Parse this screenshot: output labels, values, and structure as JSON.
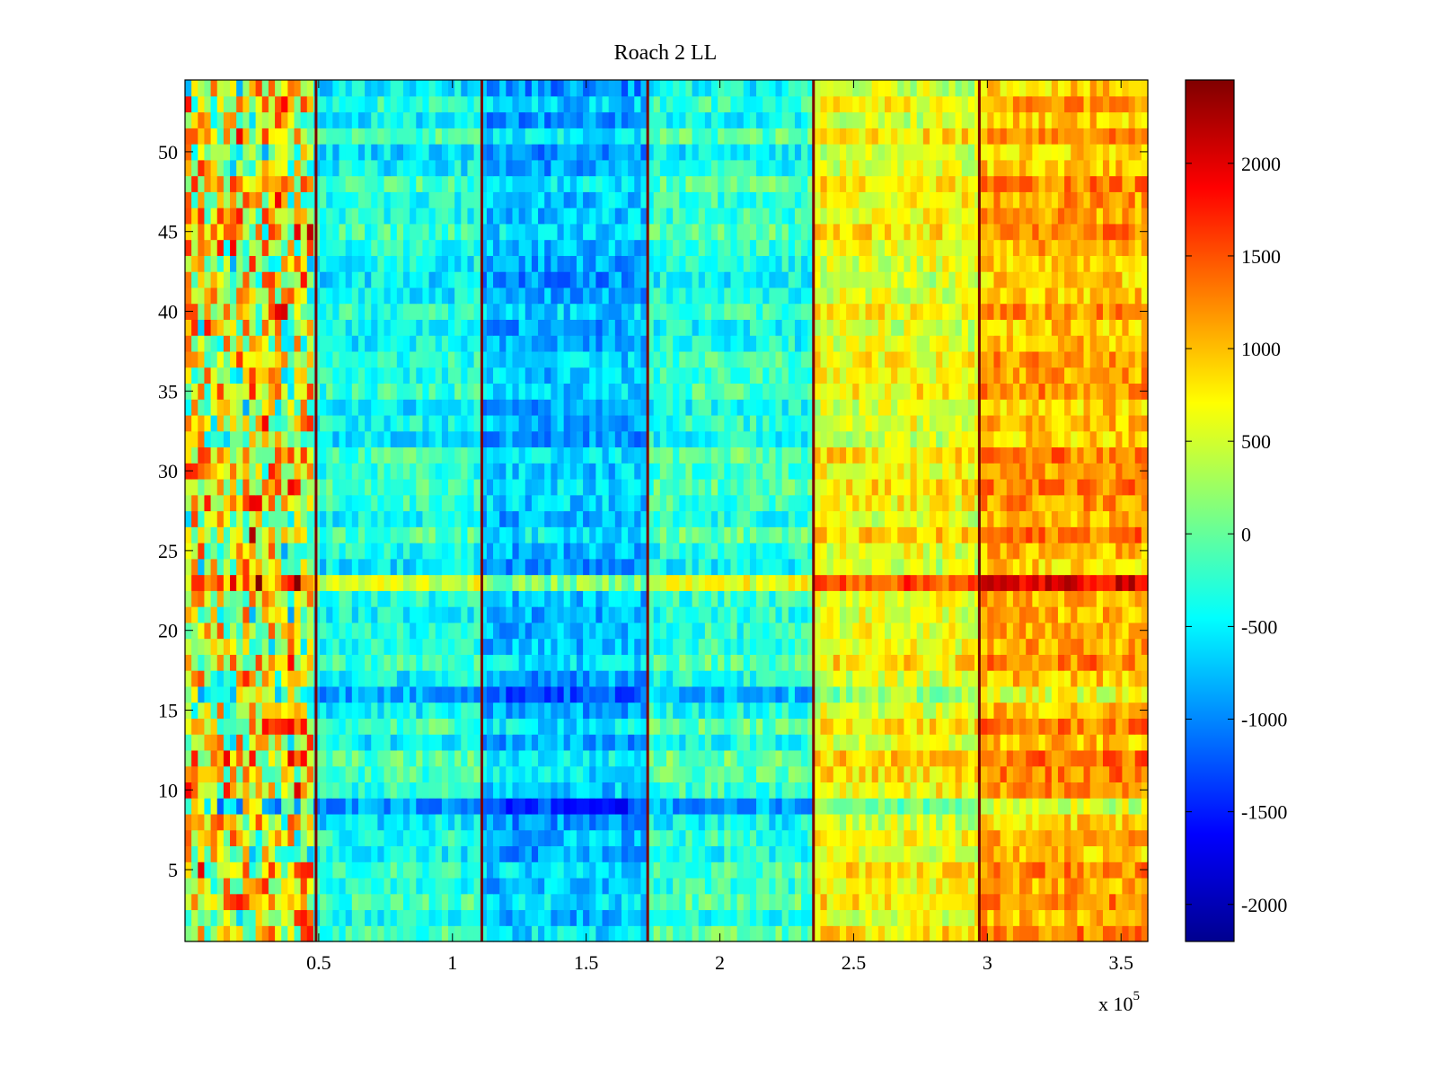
{
  "chart_data": {
    "type": "heatmap",
    "title": "Roach 2 LL",
    "xlabel": "",
    "ylabel": "",
    "x_multiplier_label": "x 10",
    "x_multiplier_exponent": "5",
    "xlim": [
      0,
      3.6
    ],
    "ylim": [
      0.5,
      54.5
    ],
    "rows": 54,
    "x_ticks": [
      0.5,
      1,
      1.5,
      2,
      2.5,
      3,
      3.5
    ],
    "x_tick_labels": [
      "0.5",
      "1",
      "1.5",
      "2",
      "2.5",
      "3",
      "3.5"
    ],
    "y_ticks": [
      5,
      10,
      15,
      20,
      25,
      30,
      35,
      40,
      45,
      50
    ],
    "y_tick_labels": [
      "5",
      "10",
      "15",
      "20",
      "25",
      "30",
      "35",
      "40",
      "45",
      "50"
    ],
    "colorbar": {
      "colormap": "jet",
      "clim": [
        -2200,
        2450
      ],
      "ticks": [
        -2000,
        -1500,
        -1000,
        -500,
        0,
        500,
        1000,
        1500,
        2000
      ],
      "tick_labels": [
        "-2000",
        "-1500",
        "-1000",
        "-500",
        "0",
        "500",
        "1000",
        "1500",
        "2000"
      ]
    },
    "segment_boundaries_x": [
      0.49,
      1.11,
      1.73,
      2.35,
      2.97
    ],
    "segments": [
      {
        "x_range": [
          0,
          0.49
        ],
        "mean_value": 600
      },
      {
        "x_range": [
          0.49,
          1.11
        ],
        "mean_value": -350
      },
      {
        "x_range": [
          1.11,
          1.73
        ],
        "mean_value": -750
      },
      {
        "x_range": [
          1.73,
          2.35
        ],
        "mean_value": -250
      },
      {
        "x_range": [
          2.35,
          2.97
        ],
        "mean_value": 650
      },
      {
        "x_range": [
          2.97,
          3.6
        ],
        "mean_value": 1100
      }
    ],
    "row_offsets": {
      "9": -800,
      "12": 300,
      "16": -400,
      "23": 700,
      "26": 300,
      "34": -300,
      "50": -400
    }
  }
}
